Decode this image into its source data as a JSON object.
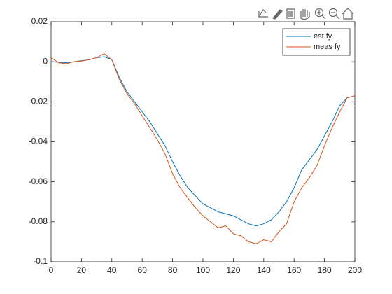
{
  "chart_data": {
    "type": "line",
    "x": [
      0,
      5,
      10,
      15,
      20,
      25,
      30,
      35,
      40,
      45,
      50,
      55,
      60,
      65,
      70,
      75,
      80,
      85,
      90,
      95,
      100,
      105,
      110,
      115,
      120,
      125,
      130,
      135,
      140,
      145,
      150,
      155,
      160,
      165,
      170,
      175,
      180,
      185,
      190,
      195,
      200
    ],
    "series": [
      {
        "name": "est fy",
        "color": "#0072bd",
        "values": [
          0,
          -0.0003,
          -0.0005,
          0,
          0.0005,
          0.001,
          0.002,
          0.0025,
          0.001,
          -0.008,
          -0.015,
          -0.02,
          -0.025,
          -0.03,
          -0.036,
          -0.042,
          -0.05,
          -0.057,
          -0.063,
          -0.067,
          -0.071,
          -0.073,
          -0.075,
          -0.076,
          -0.077,
          -0.079,
          -0.081,
          -0.082,
          -0.081,
          -0.079,
          -0.075,
          -0.07,
          -0.063,
          -0.054,
          -0.049,
          -0.044,
          -0.037,
          -0.03,
          -0.022,
          -0.018,
          -0.017
        ]
      },
      {
        "name": "meas fy",
        "color": "#d95319",
        "values": [
          0.002,
          -0.0005,
          -0.001,
          0,
          0.0003,
          0.001,
          0.002,
          0.004,
          0.001,
          -0.009,
          -0.016,
          -0.021,
          -0.027,
          -0.033,
          -0.039,
          -0.046,
          -0.056,
          -0.063,
          -0.068,
          -0.073,
          -0.077,
          -0.08,
          -0.083,
          -0.082,
          -0.086,
          -0.087,
          -0.09,
          -0.091,
          -0.089,
          -0.09,
          -0.085,
          -0.081,
          -0.07,
          -0.063,
          -0.058,
          -0.052,
          -0.042,
          -0.033,
          -0.025,
          -0.018,
          -0.017
        ]
      }
    ],
    "xlim": [
      0,
      200
    ],
    "xticks": [
      0,
      20,
      40,
      60,
      80,
      100,
      120,
      140,
      160,
      180,
      200
    ],
    "ylim": [
      -0.1,
      0.02
    ],
    "yticks": [
      -0.1,
      -0.08,
      -0.06,
      -0.04,
      -0.02,
      0,
      0.02
    ],
    "legend": "top-right"
  }
}
